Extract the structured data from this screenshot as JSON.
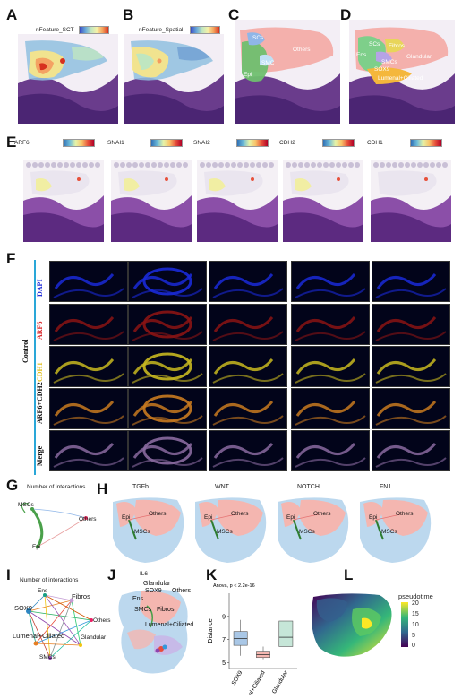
{
  "panels": {
    "A": {
      "letter": "A",
      "colorbar_label": "nFeature_SCT"
    },
    "B": {
      "letter": "B",
      "colorbar_label": "nFeature_Spatial"
    },
    "C": {
      "letter": "C",
      "clusters": [
        "SCs",
        "SMC",
        "Epi",
        "Others"
      ]
    },
    "D": {
      "letter": "D",
      "clusters": [
        "SCs",
        "Fibros",
        "Ens",
        "SMCs",
        "SOX9",
        "Glandular",
        "Lumenal+Ciliated"
      ]
    },
    "E": {
      "letter": "E",
      "genes": [
        "ARF6",
        "SNAI1",
        "SNAI2",
        "CDH2",
        "CDH1"
      ]
    },
    "F": {
      "letter": "F",
      "group_label": "Control",
      "rows": [
        "DAPI",
        "ARF6",
        "CDH1",
        "ARF6+CDH2",
        "Merge"
      ],
      "row_colors": [
        "#2430d8",
        "#d8262a",
        "#e0c020",
        "#111111",
        "#111111"
      ]
    },
    "G": {
      "letter": "G",
      "title": "Number of interactions",
      "nodes": [
        "MSCs",
        "Others",
        "Epi"
      ]
    },
    "H": {
      "letter": "H",
      "pathways": [
        {
          "name": "TGFb",
          "labels": [
            "Epi",
            "Others",
            "MSCs"
          ]
        },
        {
          "name": "WNT",
          "labels": [
            "Epi",
            "Others",
            "MSCs"
          ]
        },
        {
          "name": "NOTCH",
          "labels": [
            "Epi",
            "Others",
            "MSCs"
          ]
        },
        {
          "name": "FN1",
          "labels": [
            "Epi",
            "Others",
            "MSCs"
          ]
        }
      ]
    },
    "I": {
      "letter": "I",
      "title": "Number of interactions",
      "nodes": [
        "Ens",
        "Fibros",
        "SOX9",
        "Others",
        "Lumenal+Ciliated",
        "Glandular",
        "SMCs"
      ]
    },
    "J": {
      "letter": "J",
      "title": "IL6",
      "labels": [
        "Glandular",
        "SOX9",
        "Others",
        "Ens",
        "SMCs",
        "Fibros",
        "Lumenal+Ciliated"
      ]
    },
    "K": {
      "letter": "K",
      "stat": "Anova, p < 2.2e-16",
      "ylabel": "Distance"
    },
    "L": {
      "letter": "L",
      "colorbar_label": "pseudotime",
      "ticks": [
        "20",
        "15",
        "10",
        "5",
        "0"
      ]
    }
  },
  "chart_data": {
    "type": "box",
    "title": "Anova, p < 2.2e-16",
    "ylabel": "Distance",
    "categories": [
      "SOX9",
      "Lumenal+Ciliated",
      "Glandular"
    ],
    "ylim": [
      4.5,
      11
    ],
    "yticks": [
      5,
      7,
      9
    ],
    "boxes": [
      {
        "category": "SOX9",
        "min": 5.6,
        "q1": 6.5,
        "median": 7.1,
        "q3": 7.7,
        "max": 8.7
      },
      {
        "category": "Lumenal+Ciliated",
        "min": 5.3,
        "q1": 5.45,
        "median": 5.7,
        "q3": 6.0,
        "max": 6.4
      },
      {
        "category": "Glandular",
        "min": 5.6,
        "q1": 6.4,
        "median": 7.2,
        "q3": 8.6,
        "max": 10.8
      }
    ],
    "colors": [
      "#a9c7e6",
      "#f4b6b0",
      "#c6e6d8"
    ]
  }
}
